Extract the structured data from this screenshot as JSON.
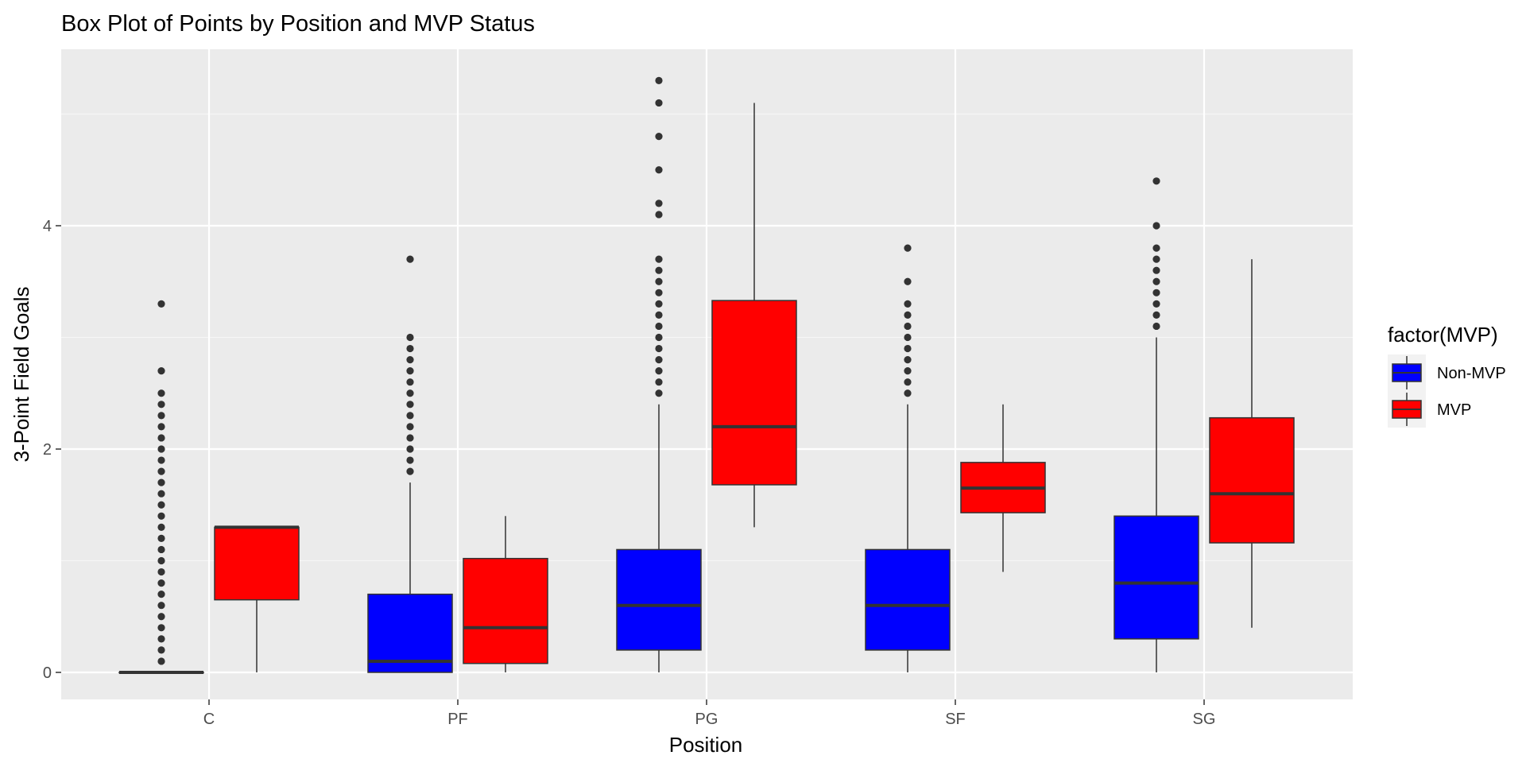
{
  "chart_data": {
    "type": "box",
    "title": "Box Plot of Points by Position and MVP Status",
    "xlabel": "Position",
    "ylabel": "3-Point Field Goals",
    "categories": [
      "C",
      "PF",
      "PG",
      "SF",
      "SG"
    ],
    "yticks": [
      0,
      2,
      4
    ],
    "ylim": [
      -0.26,
      5.55
    ],
    "grid": true,
    "legend": {
      "title": "factor(MVP)",
      "placement": "right",
      "entries": [
        {
          "label": "Non-MVP",
          "color": "#0000FF"
        },
        {
          "label": "MVP",
          "color": "#FF0000"
        }
      ]
    },
    "series": [
      {
        "name": "Non-MVP",
        "color": "#0000FF",
        "boxes": [
          {
            "category": "C",
            "min": 0,
            "q1": 0,
            "median": 0,
            "q3": 0,
            "max": 0,
            "outliers": [
              0.1,
              0.2,
              0.3,
              0.4,
              0.5,
              0.6,
              0.7,
              0.8,
              0.9,
              1.0,
              1.1,
              1.2,
              1.3,
              1.4,
              1.5,
              1.6,
              1.7,
              1.8,
              1.9,
              2.0,
              2.1,
              2.2,
              2.3,
              2.4,
              2.5,
              2.7,
              3.3
            ]
          },
          {
            "category": "PF",
            "min": 0,
            "q1": 0,
            "median": 0.1,
            "q3": 0.7,
            "max": 1.7,
            "outliers": [
              1.8,
              1.9,
              2.0,
              2.1,
              2.2,
              2.3,
              2.4,
              2.5,
              2.6,
              2.7,
              2.8,
              2.9,
              3.0,
              3.7
            ]
          },
          {
            "category": "PG",
            "min": 0,
            "q1": 0.2,
            "median": 0.6,
            "q3": 1.1,
            "max": 2.4,
            "outliers": [
              2.5,
              2.6,
              2.7,
              2.8,
              2.9,
              3.0,
              3.1,
              3.2,
              3.3,
              3.4,
              3.5,
              3.6,
              3.7,
              4.1,
              4.2,
              4.5,
              4.8,
              5.1,
              5.3
            ]
          },
          {
            "category": "SF",
            "min": 0,
            "q1": 0.2,
            "median": 0.6,
            "q3": 1.1,
            "max": 2.4,
            "outliers": [
              2.5,
              2.6,
              2.7,
              2.8,
              2.9,
              3.0,
              3.1,
              3.2,
              3.3,
              3.5,
              3.8
            ]
          },
          {
            "category": "SG",
            "min": 0,
            "q1": 0.3,
            "median": 0.8,
            "q3": 1.4,
            "max": 3.0,
            "outliers": [
              3.1,
              3.2,
              3.3,
              3.4,
              3.5,
              3.6,
              3.7,
              3.8,
              4.0,
              4.4
            ]
          }
        ]
      },
      {
        "name": "MVP",
        "color": "#FF0000",
        "boxes": [
          {
            "category": "C",
            "min": 0,
            "q1": 0.65,
            "median": 1.3,
            "q3": 1.3,
            "max": 1.3,
            "outliers": []
          },
          {
            "category": "PF",
            "min": 0,
            "q1": 0.08,
            "median": 0.4,
            "q3": 1.02,
            "max": 1.4,
            "outliers": []
          },
          {
            "category": "PG",
            "min": 1.3,
            "q1": 1.68,
            "median": 2.2,
            "q3": 3.33,
            "max": 5.1,
            "outliers": []
          },
          {
            "category": "SF",
            "min": 0.9,
            "q1": 1.43,
            "median": 1.65,
            "q3": 1.88,
            "max": 2.4,
            "outliers": []
          },
          {
            "category": "SG",
            "min": 0.4,
            "q1": 1.16,
            "median": 1.6,
            "q3": 2.28,
            "max": 3.7,
            "outliers": []
          }
        ]
      }
    ]
  }
}
